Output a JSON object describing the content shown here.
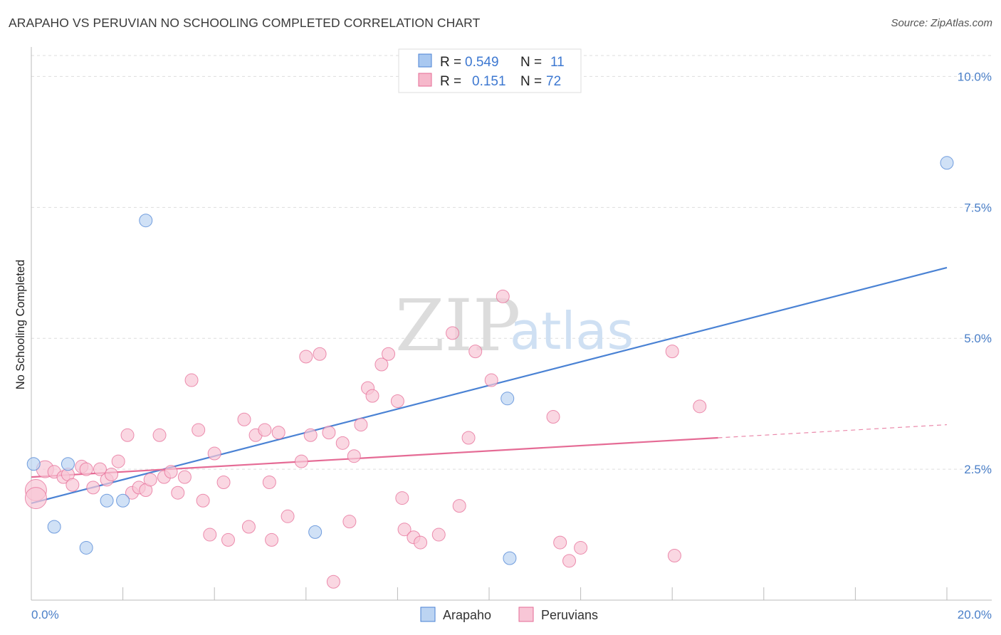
{
  "header": {
    "title": "ARAPAHO VS PERUVIAN NO SCHOOLING COMPLETED CORRELATION CHART",
    "source": "Source: ZipAtlas.com"
  },
  "watermark": {
    "zip": "ZIP",
    "atlas": "atlas"
  },
  "legend": {
    "rows": [
      {
        "r_label": "R =",
        "r_value": "0.549",
        "n_label": "N =",
        "n_value": "11",
        "color": "#a9c8f0"
      },
      {
        "r_label": "R =",
        "r_value": "0.151",
        "n_label": "N =",
        "n_value": "72",
        "color": "#f6b8cb"
      }
    ]
  },
  "chart_data": {
    "type": "scatter",
    "title": "ARAPAHO VS PERUVIAN NO SCHOOLING COMPLETED CORRELATION CHART",
    "xlabel": "",
    "ylabel": "No Schooling Completed",
    "xlim": [
      0,
      20
    ],
    "ylim": [
      0,
      10.4
    ],
    "x_tick_labels": [
      "0.0%",
      "20.0%"
    ],
    "y_ticks": [
      2.5,
      5.0,
      7.5,
      10.0
    ],
    "y_tick_labels": [
      "2.5%",
      "5.0%",
      "7.5%",
      "10.0%"
    ],
    "grid": true,
    "legend_position": "top-center",
    "series": [
      {
        "name": "Arapaho",
        "color": "#4a82d4",
        "fill": "#bcd4f2",
        "points": [
          [
            0.05,
            2.6
          ],
          [
            0.5,
            1.4
          ],
          [
            0.8,
            2.6
          ],
          [
            1.2,
            1.0
          ],
          [
            1.65,
            1.9
          ],
          [
            2.0,
            1.9
          ],
          [
            2.5,
            7.25
          ],
          [
            6.2,
            1.3
          ],
          [
            10.45,
            0.8
          ],
          [
            10.4,
            3.85
          ],
          [
            20.0,
            8.35
          ]
        ],
        "trend": {
          "x": [
            0,
            20
          ],
          "y": [
            1.85,
            6.35
          ]
        }
      },
      {
        "name": "Peruvians",
        "color": "#e56b95",
        "fill": "#f8c6d6",
        "points": [
          [
            0.1,
            2.1
          ],
          [
            0.1,
            1.95
          ],
          [
            0.3,
            2.5
          ],
          [
            0.5,
            2.45
          ],
          [
            0.7,
            2.35
          ],
          [
            0.8,
            2.4
          ],
          [
            0.9,
            2.2
          ],
          [
            1.1,
            2.55
          ],
          [
            1.2,
            2.5
          ],
          [
            1.35,
            2.15
          ],
          [
            1.5,
            2.5
          ],
          [
            1.65,
            2.3
          ],
          [
            1.75,
            2.4
          ],
          [
            1.9,
            2.65
          ],
          [
            2.1,
            3.15
          ],
          [
            2.2,
            2.05
          ],
          [
            2.35,
            2.15
          ],
          [
            2.5,
            2.1
          ],
          [
            2.6,
            2.3
          ],
          [
            2.8,
            3.15
          ],
          [
            2.9,
            2.35
          ],
          [
            3.05,
            2.45
          ],
          [
            3.2,
            2.05
          ],
          [
            3.35,
            2.35
          ],
          [
            3.5,
            4.2
          ],
          [
            3.65,
            3.25
          ],
          [
            3.75,
            1.9
          ],
          [
            3.9,
            1.25
          ],
          [
            4.0,
            2.8
          ],
          [
            4.2,
            2.25
          ],
          [
            4.3,
            1.15
          ],
          [
            4.65,
            3.45
          ],
          [
            4.75,
            1.4
          ],
          [
            4.9,
            3.15
          ],
          [
            5.1,
            3.25
          ],
          [
            5.2,
            2.25
          ],
          [
            5.25,
            1.15
          ],
          [
            5.4,
            3.2
          ],
          [
            5.6,
            1.6
          ],
          [
            5.9,
            2.65
          ],
          [
            6.0,
            4.65
          ],
          [
            6.1,
            3.15
          ],
          [
            6.3,
            4.7
          ],
          [
            6.5,
            3.2
          ],
          [
            6.6,
            0.35
          ],
          [
            6.8,
            3.0
          ],
          [
            6.95,
            1.5
          ],
          [
            7.05,
            2.75
          ],
          [
            7.2,
            3.35
          ],
          [
            7.35,
            4.05
          ],
          [
            7.45,
            3.9
          ],
          [
            7.65,
            4.5
          ],
          [
            7.8,
            4.7
          ],
          [
            8.0,
            3.8
          ],
          [
            8.1,
            1.95
          ],
          [
            8.15,
            1.35
          ],
          [
            8.35,
            1.2
          ],
          [
            8.5,
            1.1
          ],
          [
            8.9,
            1.25
          ],
          [
            9.2,
            5.1
          ],
          [
            9.35,
            1.8
          ],
          [
            9.55,
            3.1
          ],
          [
            9.7,
            4.75
          ],
          [
            10.05,
            4.2
          ],
          [
            10.3,
            5.8
          ],
          [
            11.4,
            3.5
          ],
          [
            11.55,
            1.1
          ],
          [
            11.75,
            0.75
          ],
          [
            12.0,
            1.0
          ],
          [
            14.0,
            4.75
          ],
          [
            14.05,
            0.85
          ],
          [
            14.6,
            3.7
          ]
        ],
        "trend": {
          "x": [
            0,
            15
          ],
          "y": [
            2.35,
            3.1
          ]
        },
        "trend_extension": {
          "x": [
            15,
            20
          ],
          "y": [
            3.1,
            3.35
          ]
        }
      }
    ]
  },
  "bottom_legend": {
    "items": [
      {
        "label": "Arapaho"
      },
      {
        "label": "Peruvians"
      }
    ]
  }
}
